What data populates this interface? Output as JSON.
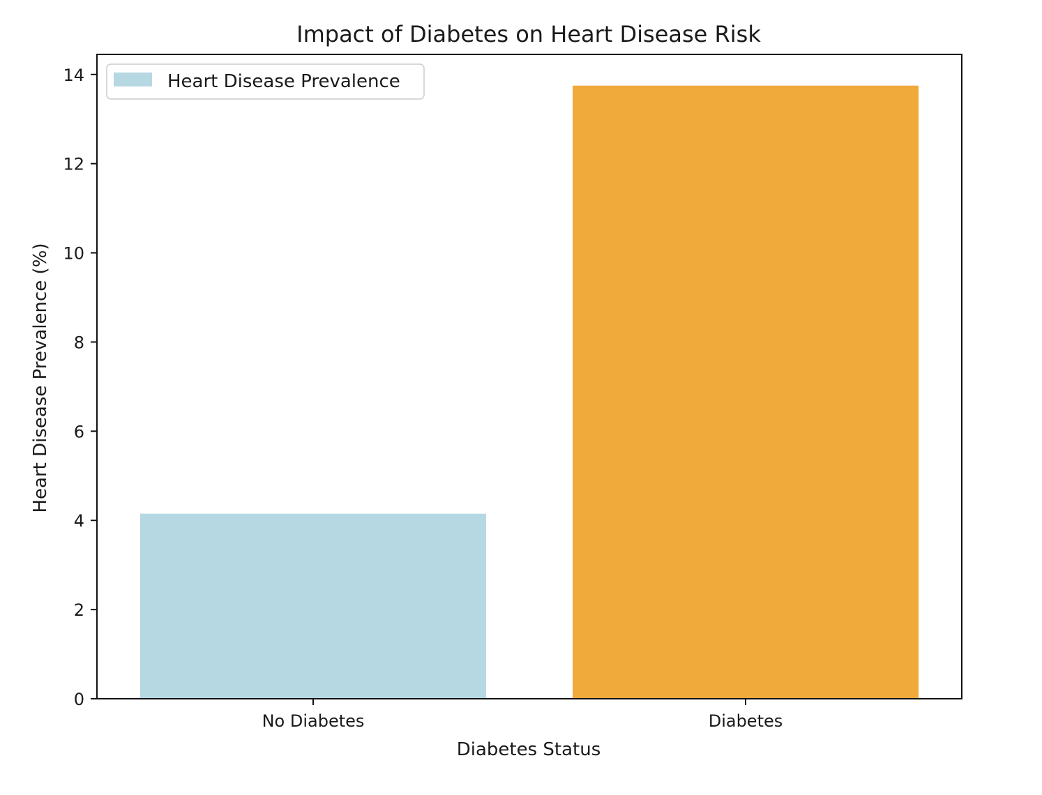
{
  "chart_data": {
    "type": "bar",
    "title": "Impact of Diabetes on Heart Disease Risk",
    "xlabel": "Diabetes Status",
    "ylabel": "Heart Disease Prevalence (%)",
    "categories": [
      "No Diabetes",
      "Diabetes"
    ],
    "values": [
      4.15,
      13.75
    ],
    "colors": [
      "#b6d8e3",
      "#f0a93b"
    ],
    "ylim": [
      0,
      14.45
    ],
    "yticks": [
      0,
      2,
      4,
      6,
      8,
      10,
      12,
      14
    ],
    "grid": false,
    "legend": {
      "position": "top-left",
      "entries": [
        {
          "label": "Heart Disease Prevalence",
          "color": "#b6d8e3"
        }
      ]
    }
  }
}
